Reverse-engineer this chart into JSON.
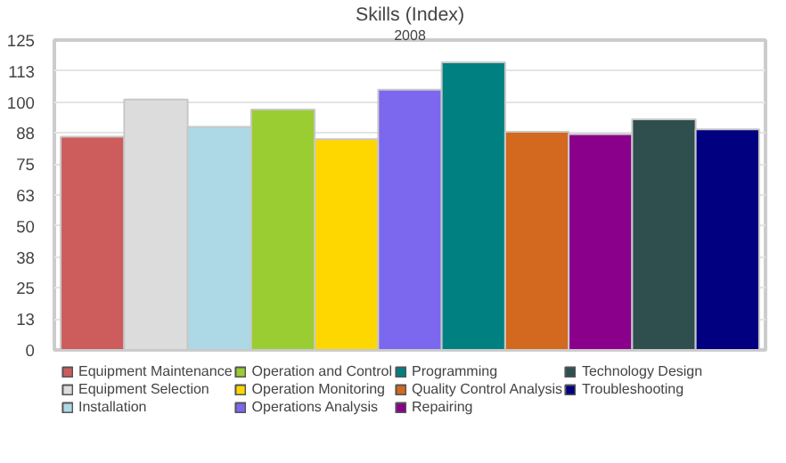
{
  "chart_data": {
    "type": "bar",
    "title": "Skills (Index)",
    "subtitle": "2008",
    "categories": [
      null
    ],
    "series": [
      {
        "name": "Equipment Maintenance",
        "color": "#cd5c5c",
        "values": [
          86
        ]
      },
      {
        "name": "Equipment Selection",
        "color": "#dcdcdc",
        "values": [
          101
        ]
      },
      {
        "name": "Installation",
        "color": "#add8e6",
        "values": [
          90
        ]
      },
      {
        "name": "Operation and Control",
        "color": "#9acd32",
        "values": [
          97
        ]
      },
      {
        "name": "Operation Monitoring",
        "color": "#ffd700",
        "values": [
          85
        ]
      },
      {
        "name": "Operations Analysis",
        "color": "#7b68ee",
        "values": [
          105
        ]
      },
      {
        "name": "Programming",
        "color": "#008080",
        "values": [
          116
        ]
      },
      {
        "name": "Quality Control Analysis",
        "color": "#d2691e",
        "values": [
          88
        ]
      },
      {
        "name": "Repairing",
        "color": "#8b008b",
        "values": [
          87
        ]
      },
      {
        "name": "Technology Design",
        "color": "#2f4f4f",
        "values": [
          93
        ]
      },
      {
        "name": "Troubleshooting",
        "color": "#000080",
        "values": [
          89
        ]
      }
    ],
    "ylim": [
      0,
      125
    ],
    "yticks": [
      0,
      {
        "value": 12.5,
        "label": "13"
      },
      25,
      {
        "value": 37.5,
        "label": "38"
      },
      50,
      {
        "value": 62.5,
        "label": "63"
      },
      75,
      {
        "value": 87.5,
        "label": "88"
      },
      100,
      {
        "value": 112.5,
        "label": "113"
      },
      125
    ],
    "grid": "y",
    "legend": "bottom"
  }
}
